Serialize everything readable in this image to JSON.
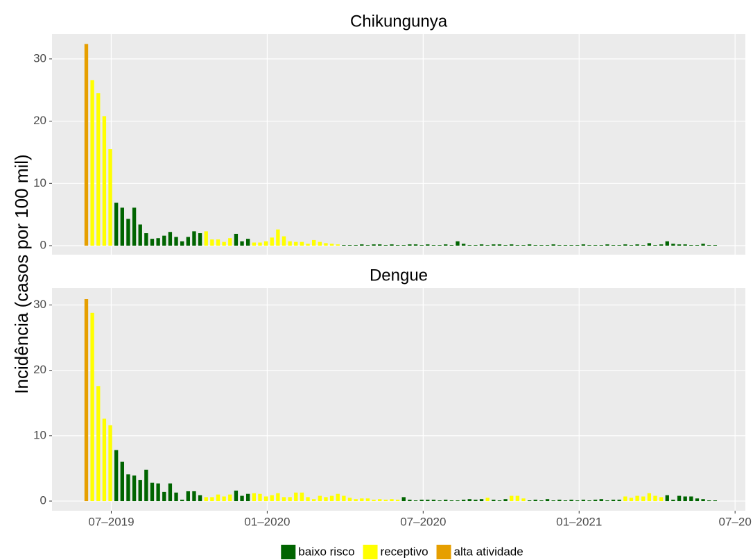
{
  "chart_data": {
    "type": "bar",
    "ylabel": "Incidência (casos por 100 mil)",
    "legend": [
      {
        "name": "baixo risco",
        "color": "#006400"
      },
      {
        "name": "receptivo",
        "color": "#FFFF00"
      },
      {
        "name": "alta atividade",
        "color": "#E69F00"
      }
    ],
    "xlim": [
      2019.31,
      2021.533
    ],
    "xticks": [
      {
        "value": 2019.5,
        "label": "07–2019"
      },
      {
        "value": 2020.0,
        "label": "01–2020"
      },
      {
        "value": 2020.5,
        "label": "07–2020"
      },
      {
        "value": 2021.0,
        "label": "01–2021"
      },
      {
        "value": 2021.5,
        "label": "07–20"
      }
    ],
    "x": [
      2019.42,
      2019.4392,
      2019.4584,
      2019.4776,
      2019.4968,
      2019.516,
      2019.5352,
      2019.5544,
      2019.5736,
      2019.5928,
      2019.612,
      2019.6312,
      2019.6504,
      2019.6696,
      2019.6888,
      2019.708,
      2019.7272,
      2019.7464,
      2019.7656,
      2019.7848,
      2019.804,
      2019.8232,
      2019.8424,
      2019.8616,
      2019.8808,
      2019.9,
      2019.9192,
      2019.9384,
      2019.9576,
      2019.9768,
      2019.996,
      2020.0152,
      2020.0344,
      2020.0536,
      2020.0728,
      2020.092,
      2020.1112,
      2020.1304,
      2020.1496,
      2020.1688,
      2020.188,
      2020.2072,
      2020.2264,
      2020.2456,
      2020.2648,
      2020.284,
      2020.3032,
      2020.3224,
      2020.3416,
      2020.3608,
      2020.38,
      2020.3992,
      2020.4184,
      2020.4376,
      2020.4568,
      2020.476,
      2020.4952,
      2020.5144,
      2020.5336,
      2020.5528,
      2020.572,
      2020.5912,
      2020.6104,
      2020.6296,
      2020.6488,
      2020.668,
      2020.6872,
      2020.7064,
      2020.7256,
      2020.7448,
      2020.764,
      2020.7832,
      2020.8024,
      2020.8216,
      2020.8408,
      2020.86,
      2020.8792,
      2020.8984,
      2020.9176,
      2020.9368,
      2020.956,
      2020.9752,
      2020.9944,
      2021.0136,
      2021.0328,
      2021.052,
      2021.0712,
      2021.0904,
      2021.1096,
      2021.1288,
      2021.148,
      2021.1672,
      2021.1864,
      2021.2056,
      2021.2248,
      2021.244,
      2021.2632,
      2021.2824,
      2021.3016,
      2021.3208,
      2021.34,
      2021.3592,
      2021.3784,
      2021.3976,
      2021.4168,
      2021.436
    ],
    "panels": [
      {
        "title": "Chikungunya",
        "ylim": [
          -1.45,
          34
        ],
        "yticks": [
          0,
          10,
          20,
          30
        ],
        "values": [
          32.4,
          26.6,
          24.5,
          20.8,
          15.5,
          6.9,
          6.1,
          4.3,
          6.1,
          3.4,
          2.0,
          1.1,
          1.2,
          1.6,
          2.2,
          1.4,
          0.7,
          1.4,
          2.3,
          2.0,
          2.3,
          1.0,
          1.0,
          0.6,
          1.2,
          1.9,
          0.7,
          1.1,
          0.5,
          0.5,
          0.7,
          1.3,
          2.6,
          1.5,
          0.7,
          0.6,
          0.6,
          0.3,
          0.9,
          0.6,
          0.4,
          0.3,
          0.2,
          0.1,
          0.1,
          0.1,
          0.2,
          0.1,
          0.2,
          0.2,
          0.1,
          0.2,
          0.1,
          0.1,
          0.2,
          0.2,
          0.1,
          0.2,
          0.1,
          0.1,
          0.2,
          0.1,
          0.7,
          0.3,
          0.1,
          0.1,
          0.2,
          0.1,
          0.2,
          0.2,
          0.1,
          0.2,
          0.1,
          0.1,
          0.2,
          0.1,
          0.1,
          0.1,
          0.2,
          0.1,
          0.1,
          0.1,
          0.1,
          0.2,
          0.1,
          0.1,
          0.1,
          0.2,
          0.1,
          0.1,
          0.2,
          0.1,
          0.2,
          0.1,
          0.4,
          0.1,
          0.2,
          0.7,
          0.3,
          0.2,
          0.2,
          0.1,
          0.1,
          0.3,
          0.1,
          0.1
        ],
        "levels": [
          2,
          1,
          1,
          1,
          1,
          0,
          0,
          0,
          0,
          0,
          0,
          0,
          0,
          0,
          0,
          0,
          0,
          0,
          0,
          0,
          1,
          1,
          1,
          1,
          1,
          0,
          0,
          0,
          1,
          1,
          1,
          1,
          1,
          1,
          1,
          1,
          1,
          1,
          1,
          1,
          1,
          1,
          1,
          0,
          0,
          0,
          0,
          0,
          0,
          0,
          0,
          0,
          0,
          0,
          0,
          0,
          0,
          0,
          0,
          0,
          0,
          0,
          0,
          0,
          0,
          0,
          0,
          0,
          0,
          0,
          0,
          0,
          0,
          0,
          0,
          0,
          0,
          0,
          0,
          0,
          0,
          0,
          0,
          0,
          0,
          0,
          0,
          0,
          0,
          0,
          0,
          0,
          0,
          0,
          0,
          0,
          0,
          0,
          0,
          0,
          0,
          0,
          0,
          0,
          0,
          0,
          0,
          0,
          0,
          0
        ]
      },
      {
        "title": "Dengue",
        "ylim": [
          -1.48,
          32.6
        ],
        "yticks": [
          0,
          10,
          20,
          30
        ],
        "values": [
          30.9,
          28.8,
          17.6,
          12.6,
          11.6,
          7.8,
          6.0,
          4.1,
          3.9,
          3.2,
          4.8,
          2.8,
          2.7,
          1.4,
          2.7,
          1.3,
          0.2,
          1.5,
          1.5,
          0.9,
          0.6,
          0.6,
          1.0,
          0.7,
          1.0,
          1.6,
          0.8,
          1.1,
          1.2,
          1.1,
          0.7,
          0.9,
          1.2,
          0.6,
          0.6,
          1.3,
          1.3,
          0.6,
          0.3,
          0.8,
          0.6,
          0.8,
          1.1,
          0.8,
          0.5,
          0.3,
          0.4,
          0.4,
          0.2,
          0.3,
          0.2,
          0.3,
          0.2,
          0.6,
          0.2,
          0.1,
          0.2,
          0.2,
          0.2,
          0.1,
          0.2,
          0.1,
          0.1,
          0.2,
          0.3,
          0.2,
          0.3,
          0.5,
          0.2,
          0.1,
          0.3,
          0.8,
          0.8,
          0.4,
          0.1,
          0.2,
          0.1,
          0.3,
          0.1,
          0.2,
          0.1,
          0.2,
          0.1,
          0.2,
          0.1,
          0.2,
          0.3,
          0.1,
          0.2,
          0.2,
          0.7,
          0.5,
          0.8,
          0.7,
          1.2,
          0.8,
          0.6,
          0.9,
          0.2,
          0.8,
          0.7,
          0.7,
          0.4,
          0.3,
          0.1,
          0.1
        ],
        "levels": [
          2,
          1,
          1,
          1,
          1,
          0,
          0,
          0,
          0,
          0,
          0,
          0,
          0,
          0,
          0,
          0,
          0,
          0,
          0,
          0,
          1,
          1,
          1,
          1,
          1,
          0,
          0,
          0,
          1,
          1,
          1,
          1,
          1,
          1,
          1,
          1,
          1,
          1,
          1,
          1,
          1,
          1,
          1,
          1,
          1,
          1,
          1,
          1,
          1,
          1,
          1,
          1,
          1,
          0,
          0,
          0,
          0,
          0,
          0,
          0,
          0,
          0,
          0,
          0,
          0,
          0,
          0,
          1,
          0,
          0,
          0,
          1,
          1,
          1,
          0,
          0,
          0,
          0,
          0,
          0,
          0,
          0,
          0,
          0,
          0,
          0,
          0,
          0,
          0,
          0,
          1,
          1,
          1,
          1,
          1,
          1,
          1,
          0,
          0,
          0,
          0,
          0,
          0,
          0,
          0,
          0
        ]
      }
    ]
  }
}
